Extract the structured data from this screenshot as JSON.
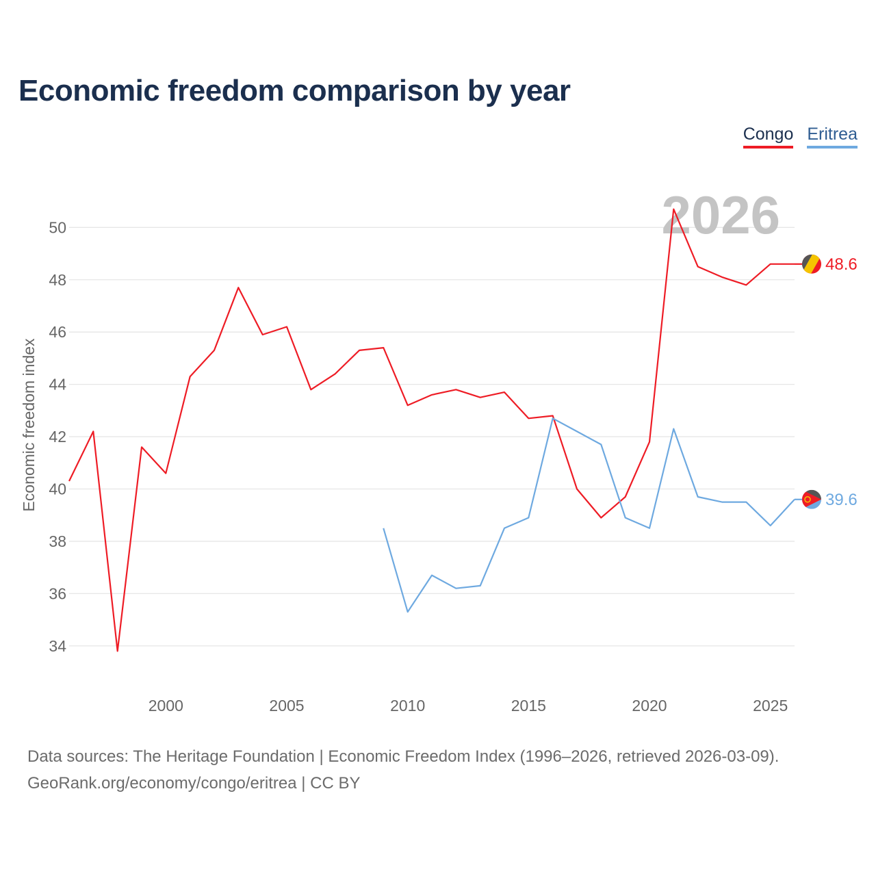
{
  "title": "Economic freedom comparison by year",
  "legend": [
    {
      "label": "Congo",
      "color": "#ee1c25"
    },
    {
      "label": "Eritrea",
      "color": "#6ea9e0"
    }
  ],
  "year_watermark": "2026",
  "source": {
    "line1": "Data sources: The Heritage Foundation | Economic Freedom Index (1996–2026, retrieved 2026-03-09).",
    "line2": "GeoRank.org/economy/congo/eritrea | CC BY"
  },
  "end_labels": {
    "congo": "48.6",
    "eritrea": "39.6"
  },
  "colors": {
    "congo": "#ee1c25",
    "eritrea": "#6ea9e0",
    "grid": "#e6e6e6",
    "axis_text": "#666666"
  },
  "chart_data": {
    "type": "line",
    "title": "Economic freedom comparison by year",
    "xlabel": "",
    "ylabel": "Economic freedom index",
    "xlim": [
      1996,
      2026
    ],
    "ylim": [
      33,
      51.5
    ],
    "xticks": [
      2000,
      2005,
      2010,
      2015,
      2020,
      2025
    ],
    "yticks": [
      34,
      36,
      38,
      40,
      42,
      44,
      46,
      48,
      50
    ],
    "series": [
      {
        "name": "Congo",
        "color": "#ee1c25",
        "x": [
          1996,
          1997,
          1998,
          1999,
          2000,
          2001,
          2002,
          2003,
          2004,
          2005,
          2006,
          2007,
          2008,
          2009,
          2010,
          2011,
          2012,
          2013,
          2014,
          2015,
          2016,
          2017,
          2018,
          2019,
          2020,
          2021,
          2022,
          2023,
          2024,
          2025,
          2026
        ],
        "values": [
          40.3,
          42.2,
          33.8,
          41.6,
          40.6,
          44.3,
          45.3,
          47.7,
          45.9,
          46.2,
          43.8,
          44.4,
          45.3,
          45.4,
          43.2,
          43.6,
          43.8,
          43.5,
          43.7,
          42.7,
          42.8,
          40.0,
          38.9,
          39.7,
          41.8,
          50.7,
          48.5,
          48.1,
          47.8,
          48.6,
          48.6
        ]
      },
      {
        "name": "Eritrea",
        "color": "#6ea9e0",
        "x": [
          2009,
          2010,
          2011,
          2012,
          2013,
          2014,
          2015,
          2016,
          2017,
          2018,
          2019,
          2020,
          2021,
          2022,
          2023,
          2024,
          2025,
          2026
        ],
        "values": [
          38.5,
          35.3,
          36.7,
          36.2,
          36.3,
          38.5,
          38.9,
          42.7,
          42.2,
          41.7,
          38.9,
          38.5,
          42.3,
          39.7,
          39.5,
          39.5,
          38.6,
          39.6
        ]
      }
    ]
  }
}
